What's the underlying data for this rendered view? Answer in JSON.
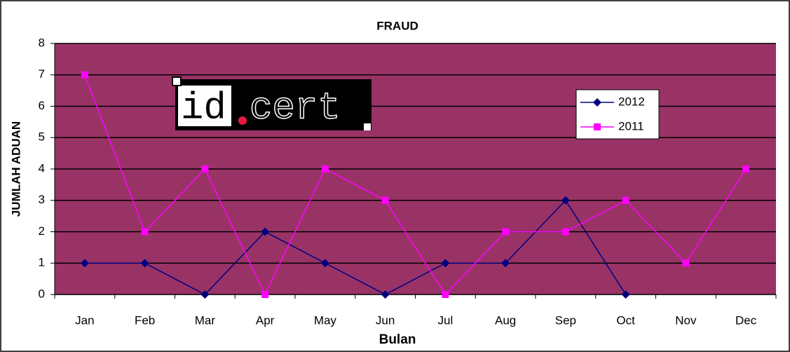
{
  "chart_data": {
    "type": "line",
    "title": "FRAUD",
    "x_label": "Bulan",
    "y_label": "JUMLAH ADUAN",
    "logo": [
      "id",
      "cert"
    ],
    "categories": [
      "Jan",
      "Feb",
      "Mar",
      "Apr",
      "May",
      "Jun",
      "Jul",
      "Aug",
      "Sep",
      "Oct",
      "Nov",
      "Dec"
    ],
    "series": [
      {
        "name": "2012",
        "color": "#000080",
        "marker": "diamond",
        "values": [
          1,
          1,
          0,
          2,
          1,
          0,
          1,
          1,
          3,
          0,
          null,
          null
        ]
      },
      {
        "name": "2011",
        "color": "#ff00ff",
        "marker": "square",
        "values": [
          7,
          2,
          4,
          0,
          4,
          3,
          0,
          2,
          2,
          3,
          1,
          4
        ]
      }
    ],
    "ylim": [
      0,
      8
    ],
    "yticks": [
      0,
      1,
      2,
      3,
      4,
      5,
      6,
      7,
      8
    ],
    "grid": true,
    "plot_color": "#993366",
    "legend": "upper right"
  }
}
